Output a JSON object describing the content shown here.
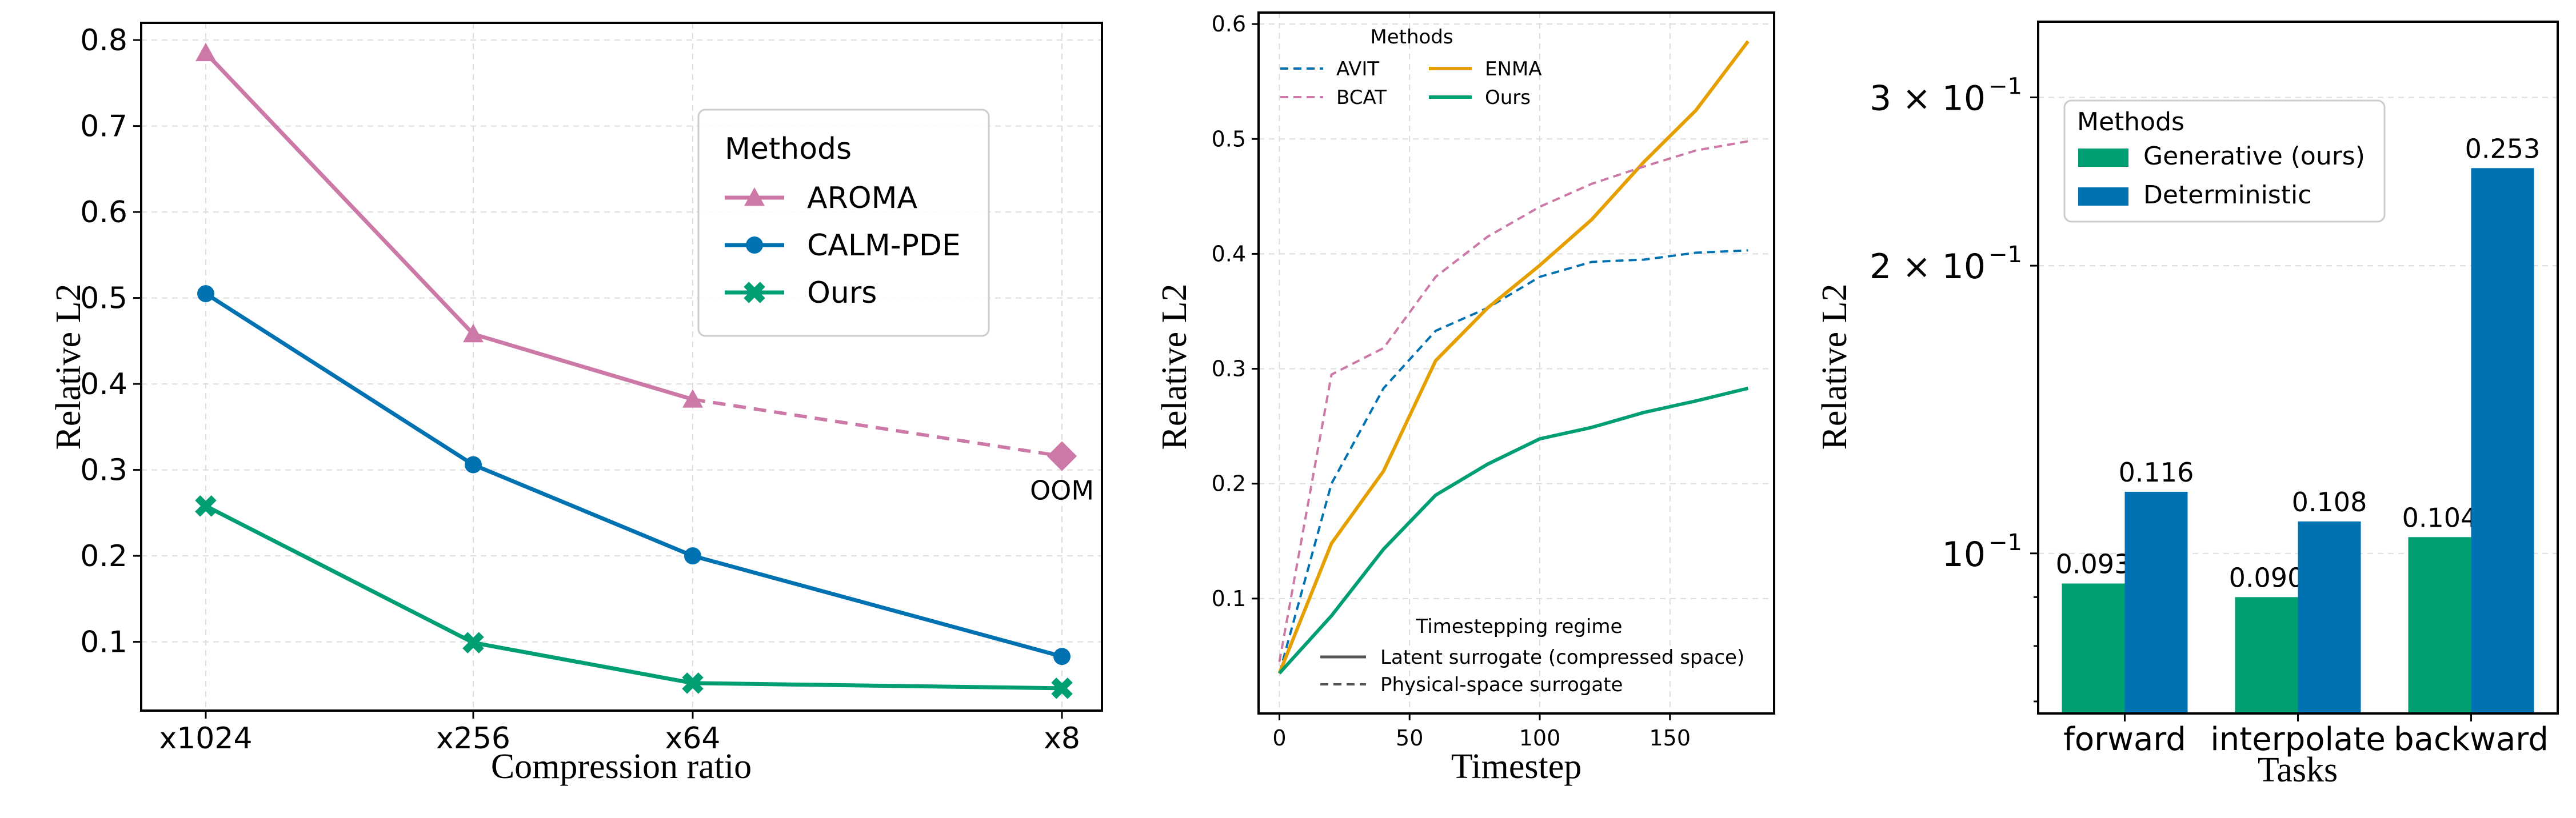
{
  "chart_data": [
    {
      "type": "line",
      "xlabel": "Compression ratio",
      "ylabel": "Relative L2",
      "categories": [
        "x1024",
        "x256",
        "x64",
        "x8"
      ],
      "ylim": [
        0.02,
        0.82
      ],
      "yticks": [
        "0.1",
        "0.2",
        "0.3",
        "0.4",
        "0.5",
        "0.6",
        "0.7",
        "0.8"
      ],
      "grid": true,
      "legend": {
        "title": "Methods",
        "position": "upper-right"
      },
      "series": [
        {
          "name": "AROMA",
          "color": "#cc79a7",
          "marker": "triangle",
          "values": [
            0.785,
            0.458,
            0.382,
            null
          ]
        },
        {
          "name": "CALM-PDE",
          "color": "#0072b2",
          "marker": "circle",
          "values": [
            0.505,
            0.306,
            0.2,
            0.083
          ]
        },
        {
          "name": "Ours",
          "color": "#009e73",
          "marker": "x",
          "values": [
            0.258,
            0.099,
            0.052,
            0.046
          ]
        }
      ],
      "extrapolation": {
        "series": "AROMA",
        "from_index": 2,
        "to_index": 3,
        "value": 0.316,
        "style": "dashed",
        "label": "OOM"
      }
    },
    {
      "type": "line",
      "xlabel": "Timestep",
      "ylabel": "Relative L2",
      "xlim": [
        -8,
        190
      ],
      "ylim": [
        0.0,
        0.61
      ],
      "xticks": [
        0,
        50,
        100,
        150
      ],
      "yticks": [
        0.1,
        0.2,
        0.3,
        0.4,
        0.5,
        0.6
      ],
      "grid": true,
      "legend": {
        "title": "Methods",
        "position": "upper-left"
      },
      "style_legend": {
        "title": "Timestepping regime",
        "position": "lower-right",
        "items": [
          "Latent surrogate (compressed space)",
          "Physical-space surrogate"
        ]
      },
      "x": [
        0,
        20,
        40,
        60,
        80,
        100,
        120,
        140,
        160,
        180
      ],
      "series": [
        {
          "name": "AVIT",
          "color": "#0072b2",
          "style": "dashed",
          "values": [
            0.035,
            0.2,
            0.283,
            0.333,
            0.353,
            0.38,
            0.393,
            0.395,
            0.401,
            0.403
          ]
        },
        {
          "name": "ENMA",
          "color": "#e69f00",
          "style": "solid",
          "values": [
            0.035,
            0.148,
            0.211,
            0.307,
            0.353,
            0.39,
            0.43,
            0.48,
            0.525,
            0.585
          ]
        },
        {
          "name": "BCAT",
          "color": "#cc79a7",
          "style": "dashed",
          "values": [
            0.045,
            0.295,
            0.318,
            0.38,
            0.415,
            0.441,
            0.461,
            0.476,
            0.49,
            0.498
          ]
        },
        {
          "name": "Ours",
          "color": "#009e73",
          "style": "solid",
          "values": [
            0.035,
            0.085,
            0.143,
            0.19,
            0.217,
            0.239,
            0.249,
            0.262,
            0.272,
            0.283
          ]
        }
      ]
    },
    {
      "type": "bar",
      "xlabel": "Tasks",
      "ylabel": "Relative L2",
      "yscale": "log",
      "ylim": [
        0.068,
        0.36
      ],
      "ytick_labels": [
        {
          "value": 0.3,
          "base": "3 × 10",
          "exp": "−1"
        },
        {
          "value": 0.2,
          "base": "2 × 10",
          "exp": "−1"
        },
        {
          "value": 0.1,
          "base": "10",
          "exp": "−1"
        }
      ],
      "minor_ticks": [
        0.07,
        0.08,
        0.09,
        0.3
      ],
      "grid": true,
      "legend": {
        "title": "Methods",
        "position": "upper-left"
      },
      "categories": [
        "forward",
        "interpolate",
        "backward"
      ],
      "series": [
        {
          "name": "Generative (ours)",
          "color": "#009e73",
          "values": [
            0.093,
            0.09,
            0.104
          ],
          "labels": [
            "0.093",
            "0.090",
            "0.104"
          ]
        },
        {
          "name": "Deterministic",
          "color": "#0072b2",
          "values": [
            0.116,
            0.108,
            0.253
          ],
          "labels": [
            "0.116",
            "0.108",
            "0.253"
          ]
        }
      ]
    }
  ]
}
